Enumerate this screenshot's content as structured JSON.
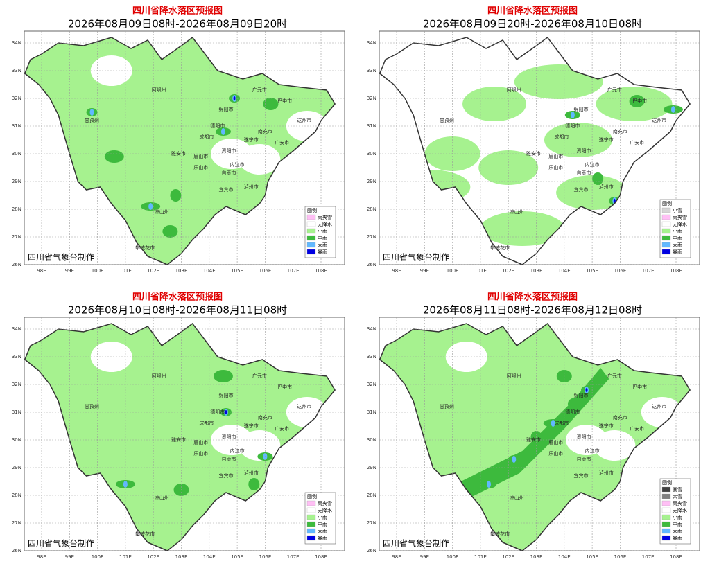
{
  "panels": [
    {
      "title": "四川省降水落区预报图",
      "subtitle": "2026年08月09日08时-2026年08月09日20时",
      "legend": {
        "title": "图例",
        "items": [
          {
            "label": "雨夹雪",
            "color": "#ffbff5"
          },
          {
            "label": "无降水",
            "color": "#ffffff"
          },
          {
            "label": "小雨",
            "color": "#a6f28f"
          },
          {
            "label": "中雨",
            "color": "#3dba3d"
          },
          {
            "label": "大雨",
            "color": "#61b8ff"
          },
          {
            "label": "暴雨",
            "color": "#0000e1"
          }
        ]
      },
      "footer": "四川省气象台制作"
    },
    {
      "title": "四川省降水落区预报图",
      "subtitle": "2026年08月09日20时-2026年08月10日08时",
      "legend": {
        "title": "图例",
        "items": [
          {
            "label": "小雪",
            "color": "#d6d6d6"
          },
          {
            "label": "雨夹雪",
            "color": "#ffbff5"
          },
          {
            "label": "无降水",
            "color": "#ffffff"
          },
          {
            "label": "小雨",
            "color": "#a6f28f"
          },
          {
            "label": "中雨",
            "color": "#3dba3d"
          },
          {
            "label": "大雨",
            "color": "#61b8ff"
          },
          {
            "label": "暴雨",
            "color": "#0000e1"
          }
        ]
      },
      "footer": "四川省气象台制作"
    },
    {
      "title": "四川省降水落区预报图",
      "subtitle": "2026年08月10日08时-2026年08月11日08时",
      "legend": {
        "title": "图例",
        "items": [
          {
            "label": "雨夹雪",
            "color": "#ffbff5"
          },
          {
            "label": "无降水",
            "color": "#ffffff"
          },
          {
            "label": "小雨",
            "color": "#a6f28f"
          },
          {
            "label": "中雨",
            "color": "#3dba3d"
          },
          {
            "label": "大雨",
            "color": "#61b8ff"
          },
          {
            "label": "暴雨",
            "color": "#0000e1"
          }
        ]
      },
      "footer": "四川省气象台制作"
    },
    {
      "title": "四川省降水落区预报图",
      "subtitle": "2026年08月11日08时-2026年08月12日08时",
      "legend": {
        "title": "图例",
        "items": [
          {
            "label": "暴雪",
            "color": "#404040"
          },
          {
            "label": "大雪",
            "color": "#808080"
          },
          {
            "label": "雨夹雪",
            "color": "#ffbff5"
          },
          {
            "label": "无降水",
            "color": "#ffffff"
          },
          {
            "label": "小雨",
            "color": "#a6f28f"
          },
          {
            "label": "中雨",
            "color": "#3dba3d"
          },
          {
            "label": "大雨",
            "color": "#61b8ff"
          },
          {
            "label": "暴雨",
            "color": "#0000e1"
          }
        ]
      },
      "footer": "四川省气象台制作"
    }
  ],
  "lat_labels": [
    "34N",
    "33N",
    "32N",
    "31N",
    "30N",
    "29N",
    "28N",
    "27N",
    "26N"
  ],
  "lon_labels": [
    "98E",
    "99E",
    "100E",
    "101E",
    "102E",
    "103E",
    "104E",
    "105E",
    "106E",
    "107E",
    "108E"
  ],
  "cities": [
    "阿坝州",
    "甘孜州",
    "广元市",
    "巴中市",
    "达州市",
    "绵阳市",
    "德阳市",
    "南充市",
    "遂宁市",
    "广安市",
    "成都市",
    "资阳市",
    "雅安市",
    "眉山市",
    "乐山市",
    "内江市",
    "自贡市",
    "宜宾市",
    "泸州市",
    "凉山州",
    "攀枝花市"
  ]
}
